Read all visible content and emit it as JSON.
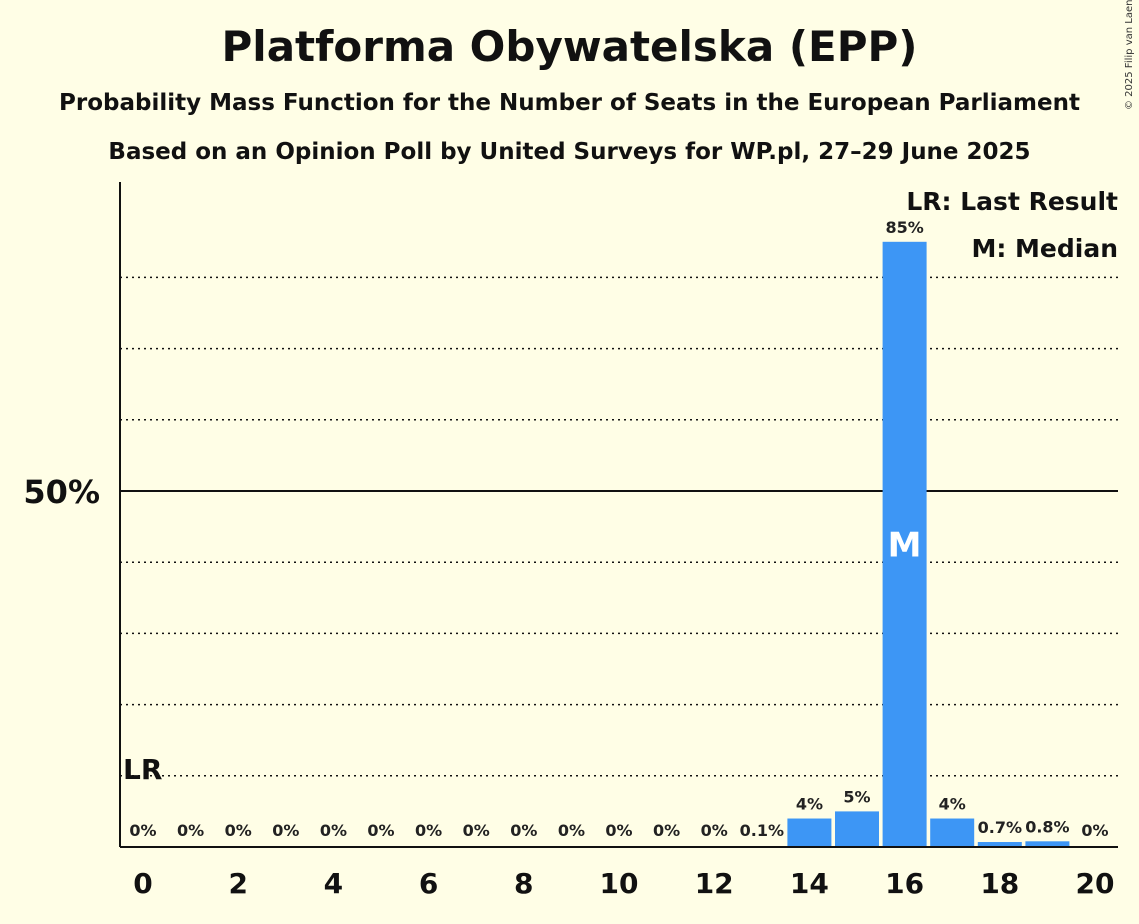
{
  "title": "Platforma Obywatelska (EPP)",
  "subtitle": "Probability Mass Function for the Number of Seats in the European Parliament",
  "subtitle2": "Based on an Opinion Poll by United Surveys for WP.pl, 27–29 June 2025",
  "copyright": "© 2025 Filip van Laenen",
  "legend": {
    "last_result": "LR: Last Result",
    "median": "M: Median"
  },
  "colors": {
    "bar": "#3d96f5",
    "background": "#fffee6"
  },
  "chart_data": {
    "type": "bar",
    "x": [
      0,
      1,
      2,
      3,
      4,
      5,
      6,
      7,
      8,
      9,
      10,
      11,
      12,
      13,
      14,
      15,
      16,
      17,
      18,
      19,
      20
    ],
    "values": [
      0,
      0,
      0,
      0,
      0,
      0,
      0,
      0,
      0,
      0,
      0,
      0,
      0,
      0.1,
      4,
      5,
      85,
      4,
      0.7,
      0.8,
      0
    ],
    "labels": [
      "0%",
      "0%",
      "0%",
      "0%",
      "0%",
      "0%",
      "0%",
      "0%",
      "0%",
      "0%",
      "0%",
      "0%",
      "0%",
      "0.1%",
      "4%",
      "5%",
      "85%",
      "4%",
      "0.7%",
      "0.8%",
      "0%"
    ],
    "x_ticks": [
      "0",
      "2",
      "4",
      "6",
      "8",
      "10",
      "12",
      "14",
      "16",
      "18",
      "20"
    ],
    "y_tick_label": "50%",
    "y_tick_value": 50,
    "ylim": [
      0,
      93
    ],
    "minor_grid": [
      10,
      20,
      30,
      40,
      60,
      70,
      80
    ],
    "last_result_seat": 0,
    "last_result_label": "LR",
    "median_seat": 16,
    "median_label": "M"
  }
}
